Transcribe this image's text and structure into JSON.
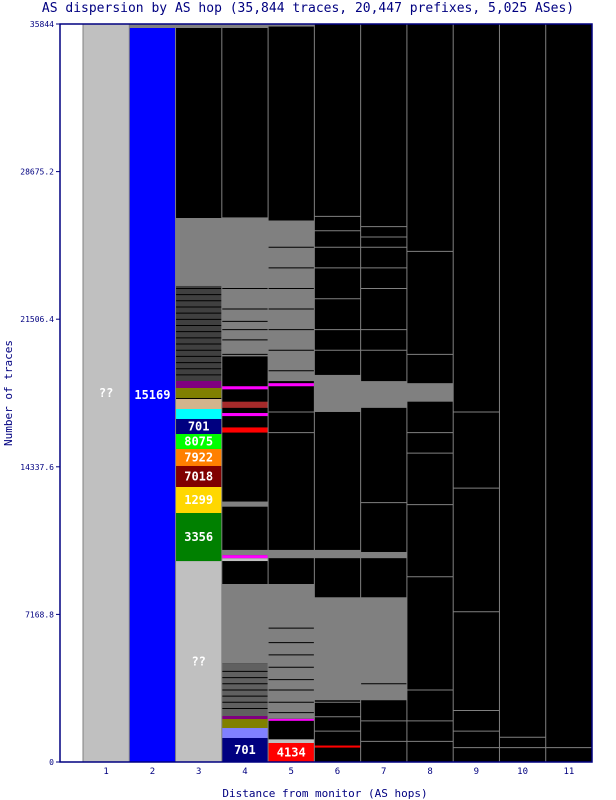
{
  "chart_data": {
    "type": "bar",
    "title": "AS dispersion by AS hop (35,844 traces, 20,447 prefixes, 5,025 ASes)",
    "xlabel": "Distance from monitor (AS hops)",
    "ylabel": "Number of traces",
    "ylim": [
      0,
      35844
    ],
    "yticks": [
      "0",
      "7168.8",
      "14337.6",
      "21506.4",
      "28675.2",
      "35844"
    ],
    "ytick_values": [
      0,
      7168.8,
      14337.6,
      21506.4,
      28675.2,
      35844
    ],
    "categories": [
      "1",
      "2",
      "3",
      "4",
      "5",
      "6",
      "7",
      "8",
      "9",
      "10",
      "11"
    ],
    "colors": {
      "frame": "#000080",
      "text": "#000080",
      "grey": "#808080",
      "unknown": "#c0c0c0"
    },
    "columns": [
      {
        "hop": "1",
        "segments": [
          {
            "from": 0,
            "to": 35844,
            "color": "#c0c0c0",
            "label": "??"
          }
        ],
        "lines": []
      },
      {
        "hop": "2",
        "segments": [
          {
            "from": 0,
            "to": 35650,
            "color": "#0000ff",
            "label": "15169"
          },
          {
            "from": 35650,
            "to": 35844,
            "color": "#808080"
          }
        ],
        "lines": []
      },
      {
        "hop": "3",
        "segments": [
          {
            "from": 0,
            "to": 9760,
            "color": "#c0c0c0",
            "label": "??"
          },
          {
            "from": 9760,
            "to": 12094,
            "color": "#008000",
            "label": "3356"
          },
          {
            "from": 12094,
            "to": 13357,
            "color": "#ffd700",
            "label": "1299"
          },
          {
            "from": 13357,
            "to": 14377,
            "color": "#800000",
            "label": "7018"
          },
          {
            "from": 14377,
            "to": 15203,
            "color": "#ff8000",
            "label": "7922"
          },
          {
            "from": 15203,
            "to": 15931,
            "color": "#00ff00",
            "label": "8075"
          },
          {
            "from": 15931,
            "to": 16660,
            "color": "#000080",
            "label": "701"
          },
          {
            "from": 16660,
            "to": 17145,
            "color": "#00ffff"
          },
          {
            "from": 17145,
            "to": 17631,
            "color": "#d2b48c"
          },
          {
            "from": 17680,
            "to": 18165,
            "color": "#808000"
          },
          {
            "from": 18165,
            "to": 18505,
            "color": "#800080"
          },
          {
            "from": 18505,
            "to": 23120,
            "color": "#404040"
          },
          {
            "from": 23120,
            "to": 26422,
            "color": "#808080"
          },
          {
            "from": 26422,
            "to": 35650,
            "color": "#000000"
          },
          {
            "from": 35650,
            "to": 35844,
            "color": "#808080"
          }
        ],
        "lines": [
          18800,
          19100,
          19400,
          19700,
          20000,
          20300,
          20600,
          20900,
          21200,
          21500,
          21800,
          22100,
          22400,
          22700,
          23000
        ]
      },
      {
        "hop": "4",
        "segments": [
          {
            "from": 0,
            "to": 1166,
            "color": "#000080",
            "label": "701"
          },
          {
            "from": 1166,
            "to": 1651,
            "color": "#8080ff"
          },
          {
            "from": 1651,
            "to": 2088,
            "color": "#808000"
          },
          {
            "from": 2088,
            "to": 2234,
            "color": "#800080"
          },
          {
            "from": 2234,
            "to": 4800,
            "color": "#606060"
          },
          {
            "from": 4800,
            "to": 8645,
            "color": "#808080"
          },
          {
            "from": 9760,
            "to": 9900,
            "color": "#c0c0c0"
          },
          {
            "from": 9900,
            "to": 10050,
            "color": "#ff00ff"
          },
          {
            "from": 10050,
            "to": 10300,
            "color": "#808080"
          },
          {
            "from": 12400,
            "to": 12650,
            "color": "#808080"
          },
          {
            "from": 16000,
            "to": 16250,
            "color": "#ff0000"
          },
          {
            "from": 16800,
            "to": 16950,
            "color": "#ff00ff"
          },
          {
            "from": 17200,
            "to": 17500,
            "color": "#a52a2a"
          },
          {
            "from": 18100,
            "to": 18250,
            "color": "#ff00ff"
          },
          {
            "from": 19700,
            "to": 26450,
            "color": "#808080"
          },
          {
            "from": 35650,
            "to": 35844,
            "color": "#808080"
          }
        ],
        "lines": [
          2600,
          2900,
          3200,
          3500,
          3800,
          4100,
          4400,
          19800,
          20500,
          21000,
          21400,
          22000,
          23000
        ]
      },
      {
        "hop": "5",
        "segments": [
          {
            "from": 0,
            "to": 923,
            "color": "#ff0000",
            "label": "4134"
          },
          {
            "from": 923,
            "to": 1100,
            "color": "#c0c0c0"
          },
          {
            "from": 2000,
            "to": 2100,
            "color": "#ff00ff"
          },
          {
            "from": 2100,
            "to": 8645,
            "color": "#808080"
          },
          {
            "from": 9900,
            "to": 10300,
            "color": "#808080"
          },
          {
            "from": 18250,
            "to": 18400,
            "color": "#ff00ff"
          },
          {
            "from": 18500,
            "to": 26300,
            "color": "#808080"
          },
          {
            "from": 35720,
            "to": 35844,
            "color": "#808080"
          }
        ],
        "lines": [
          2400,
          2900,
          3500,
          4000,
          4600,
          5200,
          5800,
          6500,
          16000,
          17000,
          19000,
          20000,
          21000,
          22000,
          23000,
          24000,
          25000
        ]
      },
      {
        "hop": "6",
        "segments": [
          {
            "from": 700,
            "to": 800,
            "color": "#ff0000"
          },
          {
            "from": 3000,
            "to": 8000,
            "color": "#808080"
          },
          {
            "from": 9900,
            "to": 10300,
            "color": "#808080"
          },
          {
            "from": 17000,
            "to": 18800,
            "color": "#808080"
          }
        ],
        "lines": [
          1500,
          2200,
          2900,
          20000,
          21000,
          22500,
          24000,
          25000,
          25800,
          26500
        ]
      },
      {
        "hop": "7",
        "segments": [
          {
            "from": 3000,
            "to": 8000,
            "color": "#808080"
          },
          {
            "from": 9900,
            "to": 10200,
            "color": "#808080"
          },
          {
            "from": 17200,
            "to": 18500,
            "color": "#808080"
          }
        ],
        "lines": [
          1000,
          2000,
          3800,
          12600,
          20000,
          21000,
          23000,
          24000,
          25000,
          25500,
          26000
        ]
      },
      {
        "hop": "8",
        "segments": [
          {
            "from": 17500,
            "to": 18400,
            "color": "#808080"
          }
        ],
        "lines": [
          1000,
          2000,
          3500,
          9000,
          12500,
          15000,
          16000,
          19800,
          24800
        ]
      },
      {
        "hop": "9",
        "segments": [],
        "lines": [
          700,
          1500,
          2500,
          7300,
          13300,
          17000
        ]
      },
      {
        "hop": "10",
        "segments": [],
        "lines": [
          700,
          1200
        ]
      },
      {
        "hop": "11",
        "segments": [],
        "lines": [
          700
        ]
      }
    ]
  }
}
